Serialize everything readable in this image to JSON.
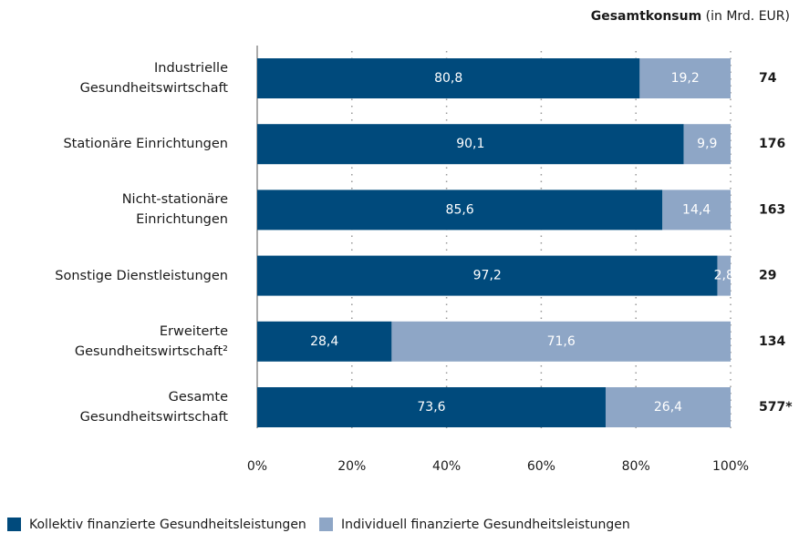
{
  "chart_data": {
    "type": "stacked_bar_horizontal",
    "categories": [
      "Industrielle\nGesundheitswirtschaft",
      "Stationäre Einrichtungen",
      "Nicht-stationäre\nEinrichtungen",
      "Sonstige Dienstleistungen",
      "Erweiterte\nGesundheitswirtschaft²",
      "Gesamte\nGesundheitswirtschaft"
    ],
    "series": [
      {
        "name": "Kollektiv finanzierte Gesundheitsleistungen",
        "color": "#004a7c",
        "values": [
          80.8,
          90.1,
          85.6,
          97.2,
          28.4,
          73.6
        ],
        "value_labels": [
          "80,8",
          "90,1",
          "85,6",
          "97,2",
          "28,4",
          "73,6"
        ]
      },
      {
        "name": "Individuell finanzierte Gesundheitsleistungen",
        "color": "#8ea6c6",
        "values": [
          19.2,
          9.9,
          14.4,
          2.8,
          71.6,
          26.4
        ],
        "value_labels": [
          "19,2",
          "9,9",
          "14,4",
          "2,8",
          "71,6",
          "26,4"
        ]
      }
    ],
    "xlim": [
      0,
      100
    ],
    "xticks": [
      {
        "value": 0,
        "label": "0%"
      },
      {
        "value": 20,
        "label": "20%"
      },
      {
        "value": 40,
        "label": "40%"
      },
      {
        "value": 60,
        "label": "60%"
      },
      {
        "value": 80,
        "label": "80%"
      },
      {
        "value": 100,
        "label": "100%"
      }
    ],
    "grid": true,
    "totals": {
      "title": "Gesamtkonsum",
      "unit": "(in Mrd. EUR)",
      "values": [
        74,
        176,
        163,
        29,
        134,
        577
      ],
      "value_labels": [
        "74",
        "176",
        "163",
        "29",
        "134",
        "577*"
      ]
    }
  }
}
